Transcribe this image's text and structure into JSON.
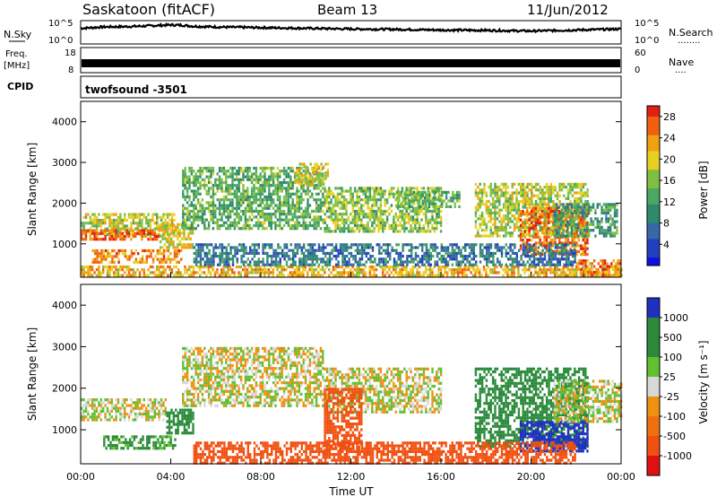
{
  "header": {
    "station": "Saskatoon (fitACF)",
    "beam": "Beam 13",
    "date": "11/Jun/2012"
  },
  "noise_panel": {
    "left_label": "N.Sky",
    "right_label": "N.Search",
    "right_dots": "........",
    "left_ticks": [
      "10^5",
      "10^0"
    ],
    "right_ticks": [
      "10^5",
      "10^0"
    ]
  },
  "freq_panel": {
    "left_label_1": "Freq.",
    "left_label_2": "[MHz]",
    "left_ticks": [
      "18",
      "8"
    ],
    "right_label": "Nave",
    "right_dots": "....",
    "right_ticks": [
      "60",
      "0"
    ]
  },
  "cpid_panel": {
    "label": "CPID",
    "program": "twofsound -3501"
  },
  "time_axis": {
    "label": "Time UT",
    "ticks": [
      "00:00",
      "04:00",
      "08:00",
      "12:00",
      "16:00",
      "20:00",
      "00:00"
    ]
  },
  "range_axis": {
    "label": "Slant Range [km]",
    "ticks": [
      "1000",
      "2000",
      "3000",
      "4000"
    ]
  },
  "power_scale": {
    "label": "Power [dB]",
    "ticks": [
      "4",
      "8",
      "12",
      "16",
      "20",
      "24",
      "28"
    ]
  },
  "velocity_scale": {
    "label": "Velocity [m s⁻¹]",
    "ticks": [
      "-1000",
      "-500",
      "-100",
      "-25",
      "25",
      "100",
      "500",
      "1000"
    ]
  },
  "chart_data": [
    {
      "type": "line",
      "title": "N.Sky / N.Search",
      "x_unit": "hours UT",
      "xlim": [
        0,
        24
      ],
      "note_scale": "log10 noise",
      "x": [
        0,
        1,
        2,
        3,
        4,
        4.5,
        5,
        6,
        8,
        10,
        12,
        14,
        16,
        18,
        20,
        22,
        24
      ],
      "y_log10": [
        3.8,
        4.2,
        4.3,
        4.5,
        4.8,
        4.7,
        4.4,
        4.2,
        4.0,
        3.8,
        3.6,
        3.5,
        3.3,
        3.2,
        3.0,
        3.3,
        3.6
      ]
    },
    {
      "type": "line",
      "title": "Freq. [MHz]",
      "x_unit": "hours UT",
      "xlim": [
        0,
        24
      ],
      "ylim": [
        8,
        18
      ],
      "series": [
        {
          "name": "Freq.",
          "x": [
            0,
            24
          ],
          "values": [
            10.5,
            10.5
          ]
        },
        {
          "name": "Nave",
          "x": [
            0,
            24
          ],
          "values": [
            9,
            9
          ]
        }
      ]
    },
    {
      "type": "heatmap",
      "title": "Power [dB]",
      "x_unit": "hours UT",
      "xlim": [
        0,
        24
      ],
      "ylim": [
        180,
        4500
      ],
      "color_scale": {
        "min": 0,
        "max": 30,
        "ticks": [
          4,
          8,
          12,
          16,
          20,
          24,
          28
        ]
      },
      "regions": [
        {
          "t0": 0.0,
          "t1": 4.2,
          "r0": 1200,
          "r1": 1750,
          "value": 18
        },
        {
          "t0": 0.0,
          "t1": 3.5,
          "r0": 1100,
          "r1": 1350,
          "value": 26
        },
        {
          "t0": 0.5,
          "t1": 4.5,
          "r0": 550,
          "r1": 850,
          "value": 24
        },
        {
          "t0": 3.5,
          "t1": 5.0,
          "r0": 900,
          "r1": 1500,
          "value": 20
        },
        {
          "t0": 4.5,
          "t1": 10.8,
          "r0": 1400,
          "r1": 2900,
          "value": 14
        },
        {
          "t0": 9.5,
          "t1": 11.0,
          "r0": 2500,
          "r1": 3000,
          "value": 20
        },
        {
          "t0": 10.8,
          "t1": 16.0,
          "r0": 1300,
          "r1": 2400,
          "value": 16
        },
        {
          "t0": 14.0,
          "t1": 16.8,
          "r0": 1900,
          "r1": 2300,
          "value": 14
        },
        {
          "t0": 17.5,
          "t1": 22.5,
          "r0": 1200,
          "r1": 2500,
          "value": 18
        },
        {
          "t0": 19.5,
          "t1": 22.5,
          "r0": 700,
          "r1": 1900,
          "value": 26
        },
        {
          "t0": 21.0,
          "t1": 23.8,
          "r0": 1200,
          "r1": 2000,
          "value": 12
        },
        {
          "t0": 0.0,
          "t1": 24.0,
          "r0": 180,
          "r1": 450,
          "value": 22
        },
        {
          "t0": 5.0,
          "t1": 22.0,
          "r0": 450,
          "r1": 1000,
          "value": 8
        },
        {
          "t0": 22.0,
          "t1": 24.0,
          "r0": 180,
          "r1": 600,
          "value": 26
        }
      ]
    },
    {
      "type": "heatmap",
      "title": "Velocity [m s⁻¹]",
      "x_unit": "hours UT",
      "xlim": [
        0,
        24
      ],
      "ylim": [
        180,
        4500
      ],
      "color_scale": {
        "bins": [
          -1000,
          -500,
          -100,
          -25,
          25,
          100,
          500,
          1000
        ]
      },
      "regions": [
        {
          "t0": 0.0,
          "t1": 3.8,
          "r0": 1200,
          "r1": 1750,
          "value": 0
        },
        {
          "t0": 1.0,
          "t1": 4.2,
          "r0": 550,
          "r1": 850,
          "value": 150
        },
        {
          "t0": 3.8,
          "t1": 5.0,
          "r0": 900,
          "r1": 1500,
          "value": 300
        },
        {
          "t0": 4.5,
          "t1": 10.8,
          "r0": 1600,
          "r1": 3000,
          "value": 0
        },
        {
          "t0": 10.8,
          "t1": 16.0,
          "r0": 1400,
          "r1": 2500,
          "value": 0
        },
        {
          "t0": 10.8,
          "t1": 12.5,
          "r0": 500,
          "r1": 2000,
          "value": -300
        },
        {
          "t0": 17.5,
          "t1": 22.5,
          "r0": 600,
          "r1": 2500,
          "value": 300
        },
        {
          "t0": 19.5,
          "t1": 22.5,
          "r0": 500,
          "r1": 1200,
          "value": 700
        },
        {
          "t0": 21.0,
          "t1": 24.0,
          "r0": 1200,
          "r1": 2200,
          "value": 0
        },
        {
          "t0": 5.0,
          "t1": 22.0,
          "r0": 200,
          "r1": 700,
          "value": -300
        }
      ]
    }
  ]
}
